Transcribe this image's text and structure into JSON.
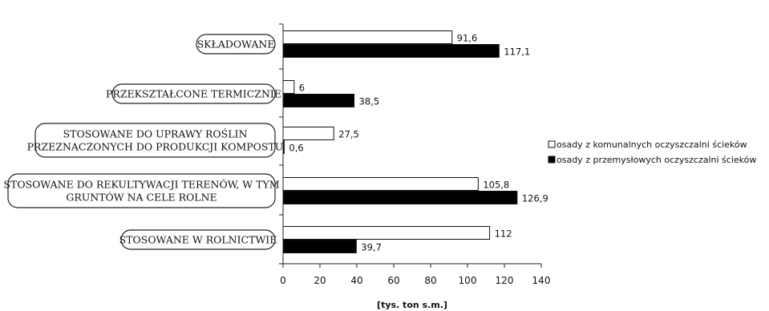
{
  "chart_data": {
    "type": "bar",
    "orientation": "horizontal",
    "categories": [
      [
        "SKŁADOWANE"
      ],
      [
        "PRZEKSZTAŁCONE TERMICZNIE"
      ],
      [
        "STOSOWANE DO UPRAWY ROŚLIN",
        "PRZEZNACZONYCH DO PRODUKCJI KOMPOSTU"
      ],
      [
        "STOSOWANE DO REKULTYWACJI TERENÓW, W TYM",
        "GRUNTÓW NA CELE ROLNE"
      ],
      [
        "STOSOWANE W ROLNICTWIE"
      ]
    ],
    "series": [
      {
        "name": "osady z komunalnych oczyszczalni ścieków",
        "color": "#ffffff",
        "values": [
          91.6,
          6,
          27.5,
          105.8,
          112
        ],
        "labels": [
          "91,6",
          "6",
          "27,5",
          "105,8",
          "112"
        ]
      },
      {
        "name": "osady z przemysłowych oczyszczalni ścieków",
        "color": "#000000",
        "values": [
          117.1,
          38.5,
          0.6,
          126.9,
          39.7
        ],
        "labels": [
          "117,1",
          "38,5",
          "0,6",
          "126,9",
          "39,7"
        ]
      }
    ],
    "xlim": [
      0,
      140
    ],
    "xticks": [
      "0",
      "20",
      "40",
      "60",
      "80",
      "100",
      "120",
      "140"
    ],
    "xlabel": "[tys. ton s.m.]",
    "legend_position": "right"
  }
}
